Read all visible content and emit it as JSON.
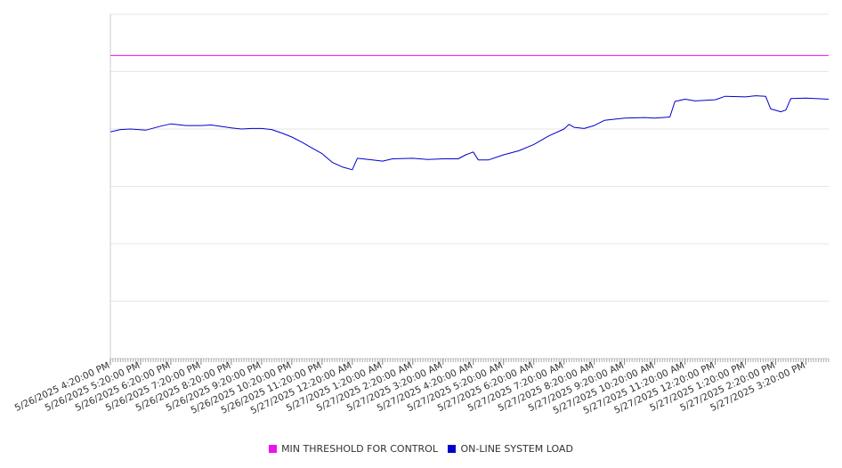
{
  "chart_data": {
    "type": "line",
    "title": "",
    "xlabel": "",
    "ylabel": "",
    "ylim": [
      0,
      6
    ],
    "grid": true,
    "legend_position": "bottom-center",
    "x_range": [
      "5/26/2025 4:20:00 PM",
      "5/27/2025 4:05:00 PM"
    ],
    "x_tick_labels": [
      "5/26/2025 4:20:00 PM",
      "5/26/2025 5:20:00 PM",
      "5/26/2025 6:20:00 PM",
      "5/26/2025 7:20:00 PM",
      "5/26/2025 8:20:00 PM",
      "5/26/2025 9:20:00 PM",
      "5/26/2025 10:20:00 PM",
      "5/26/2025 11:20:00 PM",
      "5/27/2025 12:20:00 AM",
      "5/27/2025 1:20:00 AM",
      "5/27/2025 2:20:00 AM",
      "5/27/2025 3:20:00 AM",
      "5/27/2025 4:20:00 AM",
      "5/27/2025 5:20:00 AM",
      "5/27/2025 6:20:00 AM",
      "5/27/2025 7:20:00 AM",
      "5/27/2025 8:20:00 AM",
      "5/27/2025 9:20:00 AM",
      "5/27/2025 10:20:00 AM",
      "5/27/2025 11:20:00 AM",
      "5/27/2025 12:20:00 PM",
      "5/27/2025 1:20:00 PM",
      "5/27/2025 2:20:00 PM",
      "5/27/2025 3:20:00 PM"
    ],
    "series": [
      {
        "name": "MIN THRESHOLD FOR CONTROL",
        "color": "#ee11ee",
        "points": [
          [
            "5/26/2025 4:20:00 PM",
            5.28
          ],
          [
            "5/27/2025 4:05:00 PM",
            5.28
          ]
        ]
      },
      {
        "name": "ON-LINE SYSTEM LOAD",
        "color": "#0000cc",
        "points": [
          [
            "5/26/2025 4:20:00 PM",
            3.95
          ],
          [
            "5/26/2025 4:40:00 PM",
            3.99
          ],
          [
            "5/26/2025 5:00:00 PM",
            4.0
          ],
          [
            "5/26/2025 5:30:00 PM",
            3.98
          ],
          [
            "5/26/2025 6:00:00 PM",
            4.05
          ],
          [
            "5/26/2025 6:20:00 PM",
            4.09
          ],
          [
            "5/26/2025 6:50:00 PM",
            4.06
          ],
          [
            "5/26/2025 7:20:00 PM",
            4.06
          ],
          [
            "5/26/2025 7:40:00 PM",
            4.07
          ],
          [
            "5/26/2025 8:20:00 PM",
            4.02
          ],
          [
            "5/26/2025 8:40:00 PM",
            4.0
          ],
          [
            "5/26/2025 9:00:00 PM",
            4.01
          ],
          [
            "5/26/2025 9:20:00 PM",
            4.01
          ],
          [
            "5/26/2025 9:40:00 PM",
            3.99
          ],
          [
            "5/26/2025 10:00:00 PM",
            3.93
          ],
          [
            "5/26/2025 10:20:00 PM",
            3.86
          ],
          [
            "5/26/2025 10:40:00 PM",
            3.77
          ],
          [
            "5/26/2025 11:00:00 PM",
            3.67
          ],
          [
            "5/26/2025 11:20:00 PM",
            3.57
          ],
          [
            "5/26/2025 11:40:00 PM",
            3.42
          ],
          [
            "5/27/2025 12:00:00 AM",
            3.34
          ],
          [
            "5/27/2025 12:20:00 AM",
            3.29
          ],
          [
            "5/27/2025 12:30:00 AM",
            3.49
          ],
          [
            "5/27/2025 1:00:00 AM",
            3.46
          ],
          [
            "5/27/2025 1:20:00 AM",
            3.44
          ],
          [
            "5/27/2025 1:40:00 AM",
            3.48
          ],
          [
            "5/27/2025 2:20:00 AM",
            3.49
          ],
          [
            "5/27/2025 2:50:00 AM",
            3.47
          ],
          [
            "5/27/2025 3:20:00 AM",
            3.48
          ],
          [
            "5/27/2025 3:50:00 AM",
            3.48
          ],
          [
            "5/27/2025 4:05:00 AM",
            3.55
          ],
          [
            "5/27/2025 4:20:00 AM",
            3.6
          ],
          [
            "5/27/2025 4:30:00 AM",
            3.46
          ],
          [
            "5/27/2025 4:50:00 AM",
            3.46
          ],
          [
            "5/27/2025 5:20:00 AM",
            3.55
          ],
          [
            "5/27/2025 5:50:00 AM",
            3.62
          ],
          [
            "5/27/2025 6:20:00 AM",
            3.73
          ],
          [
            "5/27/2025 6:50:00 AM",
            3.88
          ],
          [
            "5/27/2025 7:20:00 AM",
            4.0
          ],
          [
            "5/27/2025 7:30:00 AM",
            4.08
          ],
          [
            "5/27/2025 7:40:00 AM",
            4.03
          ],
          [
            "5/27/2025 8:00:00 AM",
            4.01
          ],
          [
            "5/27/2025 8:20:00 AM",
            4.06
          ],
          [
            "5/27/2025 8:40:00 AM",
            4.15
          ],
          [
            "5/27/2025 9:20:00 AM",
            4.19
          ],
          [
            "5/27/2025 10:00:00 AM",
            4.2
          ],
          [
            "5/27/2025 10:20:00 AM",
            4.19
          ],
          [
            "5/27/2025 10:50:00 AM",
            4.21
          ],
          [
            "5/27/2025 11:00:00 AM",
            4.48
          ],
          [
            "5/27/2025 11:20:00 AM",
            4.52
          ],
          [
            "5/27/2025 11:40:00 AM",
            4.49
          ],
          [
            "5/27/2025 12:20:00 PM",
            4.51
          ],
          [
            "5/27/2025 12:40:00 PM",
            4.57
          ],
          [
            "5/27/2025 1:20:00 PM",
            4.56
          ],
          [
            "5/27/2025 1:40:00 PM",
            4.58
          ],
          [
            "5/27/2025 2:00:00 PM",
            4.57
          ],
          [
            "5/27/2025 2:10:00 PM",
            4.35
          ],
          [
            "5/27/2025 2:30:00 PM",
            4.3
          ],
          [
            "5/27/2025 2:40:00 PM",
            4.33
          ],
          [
            "5/27/2025 2:50:00 PM",
            4.53
          ],
          [
            "5/27/2025 3:20:00 PM",
            4.54
          ],
          [
            "5/27/2025 4:05:00 PM",
            4.52
          ]
        ]
      }
    ]
  }
}
